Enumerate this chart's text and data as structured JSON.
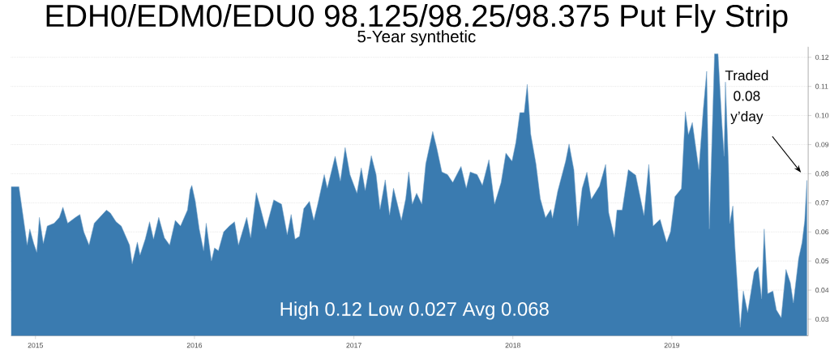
{
  "chart_data": {
    "type": "area",
    "title": "EDH0/EDM0/EDU0 98.125/98.25/98.375 Put Fly Strip",
    "subtitle": "5-Year synthetic",
    "annotations": [
      "High 0.12 Low 0.027 Avg 0.068",
      "Traded 0.08 y’day"
    ],
    "color": "#3a7bb0",
    "grid": "y",
    "xlim": [
      "2014-11-06",
      "2019-11-10"
    ],
    "ylim": [
      0.0243,
      0.1236
    ],
    "xticks": [
      "2015",
      "2016",
      "2017",
      "2018",
      "2019"
    ],
    "yticks": [
      0.03,
      0.04,
      0.05,
      0.06,
      0.07,
      0.08,
      0.09,
      {
        "value": 0.1,
        "label": "0.10"
      },
      0.11,
      0.12
    ],
    "x": [
      "2014-11-06",
      "2014-11-24",
      "2014-12-04",
      "2014-12-13",
      "2014-12-19",
      "2014-12-28",
      "2015-01-04",
      "2015-01-10",
      "2015-01-19",
      "2015-01-28",
      "2015-02-13",
      "2015-02-25",
      "2015-03-05",
      "2015-03-16",
      "2015-04-03",
      "2015-04-13",
      "2015-04-22",
      "2015-05-04",
      "2015-05-16",
      "2015-06-13",
      "2015-06-22",
      "2015-07-05",
      "2015-07-17",
      "2015-08-05",
      "2015-08-11",
      "2015-08-23",
      "2015-08-29",
      "2015-09-10",
      "2015-09-20",
      "2015-09-29",
      "2015-10-11",
      "2015-10-24",
      "2015-11-05",
      "2015-11-18",
      "2015-11-30",
      "2015-12-16",
      "2015-12-22",
      "2015-12-26",
      "2016-01-03",
      "2016-01-12",
      "2016-01-22",
      "2016-01-28",
      "2016-02-09",
      "2016-02-16",
      "2016-02-25",
      "2016-03-08",
      "2016-03-21",
      "2016-04-02",
      "2016-04-11",
      "2016-04-30",
      "2016-05-09",
      "2016-05-22",
      "2016-05-31",
      "2016-06-13",
      "2016-07-01",
      "2016-07-19",
      "2016-08-01",
      "2016-08-10",
      "2016-08-19",
      "2016-08-29",
      "2016-09-08",
      "2016-09-21",
      "2016-10-01",
      "2016-10-10",
      "2016-10-25",
      "2016-11-01",
      "2016-11-19",
      "2016-12-01",
      "2016-12-12",
      "2016-12-23",
      "2017-01-08",
      "2017-01-18",
      "2017-01-27",
      "2017-02-10",
      "2017-02-21",
      "2017-03-02",
      "2017-03-14",
      "2017-03-24",
      "2017-04-02",
      "2017-04-20",
      "2017-04-30",
      "2017-05-07",
      "2017-05-15",
      "2017-05-25",
      "2017-06-06",
      "2017-06-15",
      "2017-07-01",
      "2017-07-10",
      "2017-07-22",
      "2017-08-04",
      "2017-08-16",
      "2017-09-04",
      "2017-09-16",
      "2017-09-25",
      "2017-10-11",
      "2017-10-23",
      "2017-11-07",
      "2017-11-20",
      "2017-12-05",
      "2017-12-16",
      "2017-12-30",
      "2018-01-08",
      "2018-01-17",
      "2018-01-27",
      "2018-02-03",
      "2018-02-11",
      "2018-02-23",
      "2018-03-05",
      "2018-03-17",
      "2018-03-29",
      "2018-04-02",
      "2018-04-14",
      "2018-05-02",
      "2018-05-10",
      "2018-05-21",
      "2018-05-30",
      "2018-06-09",
      "2018-06-20",
      "2018-06-30",
      "2018-07-19",
      "2018-08-02",
      "2018-08-09",
      "2018-08-22",
      "2018-08-28",
      "2018-09-09",
      "2018-09-23",
      "2018-10-10",
      "2018-10-29",
      "2018-11-09",
      "2018-11-19",
      "2018-12-05",
      "2018-12-20",
      "2018-12-29",
      "2019-01-08",
      "2019-01-23",
      "2019-02-01",
      "2019-02-08",
      "2019-02-17",
      "2019-03-04",
      "2019-03-14",
      "2019-03-22",
      "2019-03-28",
      "2019-04-09",
      "2019-04-17",
      "2019-04-26",
      "2019-05-01",
      "2019-05-04",
      "2019-05-11",
      "2019-05-14",
      "2019-05-21",
      "2019-05-26",
      "2019-06-02",
      "2019-06-07",
      "2019-06-14",
      "2019-06-24",
      "2019-07-09",
      "2019-07-18",
      "2019-07-26",
      "2019-08-01",
      "2019-08-09",
      "2019-08-21",
      "2019-08-29",
      "2019-09-09",
      "2019-09-20",
      "2019-09-30",
      "2019-10-07",
      "2019-10-19",
      "2019-10-27",
      "2019-11-02",
      "2019-11-07"
    ],
    "values": [
      0.0755,
      0.0755,
      0.065,
      0.0555,
      0.061,
      0.056,
      0.053,
      0.065,
      0.056,
      0.062,
      0.063,
      0.065,
      0.0685,
      0.063,
      0.065,
      0.066,
      0.06,
      0.0555,
      0.063,
      0.0675,
      0.0665,
      0.0635,
      0.062,
      0.0555,
      0.049,
      0.0565,
      0.052,
      0.0575,
      0.0635,
      0.0575,
      0.065,
      0.058,
      0.0555,
      0.064,
      0.062,
      0.0675,
      0.0745,
      0.076,
      0.0705,
      0.061,
      0.0535,
      0.063,
      0.05,
      0.0545,
      0.0535,
      0.06,
      0.062,
      0.0635,
      0.0555,
      0.065,
      0.058,
      0.0735,
      0.0685,
      0.061,
      0.071,
      0.0695,
      0.059,
      0.066,
      0.0575,
      0.0585,
      0.068,
      0.0705,
      0.064,
      0.0695,
      0.0797,
      0.075,
      0.086,
      0.0775,
      0.089,
      0.0797,
      0.0733,
      0.082,
      0.0742,
      0.0862,
      0.0797,
      0.0677,
      0.0779,
      0.0658,
      0.075,
      0.064,
      0.0714,
      0.0806,
      0.0695,
      0.0733,
      0.0695,
      0.0834,
      0.0945,
      0.089,
      0.0806,
      0.0797,
      0.077,
      0.0825,
      0.075,
      0.0806,
      0.0797,
      0.076,
      0.0848,
      0.0695,
      0.077,
      0.0871,
      0.0843,
      0.0908,
      0.101,
      0.101,
      0.1107,
      0.0936,
      0.0834,
      0.0714,
      0.0649,
      0.0677,
      0.0647,
      0.074,
      0.0842,
      0.0902,
      0.0814,
      0.062,
      0.0749,
      0.0805,
      0.0712,
      0.0758,
      0.0832,
      0.0666,
      0.0582,
      0.0675,
      0.0675,
      0.0814,
      0.0795,
      0.0656,
      0.0832,
      0.062,
      0.0643,
      0.0564,
      0.0601,
      0.0721,
      0.0749,
      0.1013,
      0.0934,
      0.0976,
      0.0814,
      0.1018,
      0.1152,
      0.061,
      0.1212,
      0.1212,
      0.0971,
      0.086,
      0.1115,
      0.0832,
      0.0629,
      0.0689,
      0.0545,
      0.0379,
      0.0272,
      0.0397,
      0.0323,
      0.0462,
      0.048,
      0.037,
      0.061,
      0.0388,
      0.0397,
      0.0332,
      0.0305,
      0.0471,
      0.0425,
      0.0356,
      0.0508,
      0.0564,
      0.0638,
      0.0777
    ]
  }
}
